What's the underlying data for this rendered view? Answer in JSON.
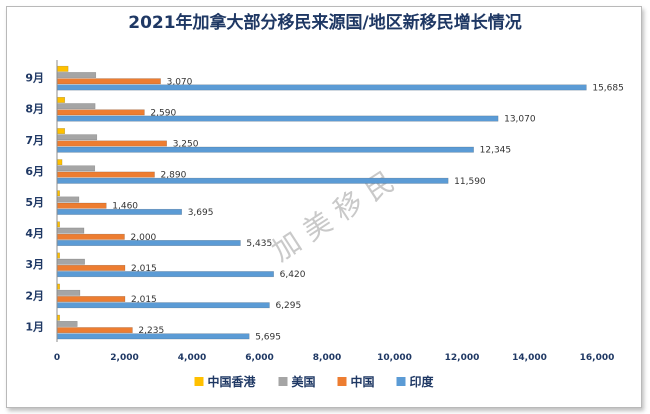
{
  "chart_data": {
    "type": "bar",
    "orientation": "horizontal",
    "title": "2021年加拿大部分移民来源国/地区新移民增长情况",
    "categories": [
      "1月",
      "2月",
      "3月",
      "4月",
      "5月",
      "6月",
      "7月",
      "8月",
      "9月"
    ],
    "series": [
      {
        "name": "中国香港",
        "color": "#ffc000",
        "values": [
          80,
          80,
          80,
          80,
          80,
          150,
          230,
          230,
          330
        ]
      },
      {
        "name": "美国",
        "color": "#a5a5a5",
        "values": [
          600,
          680,
          820,
          800,
          650,
          1120,
          1180,
          1130,
          1150
        ]
      },
      {
        "name": "中国",
        "color": "#ed7d31",
        "values": [
          2235,
          2015,
          2015,
          2000,
          1460,
          2890,
          3250,
          2590,
          3070
        ],
        "labels": [
          "2,235",
          "2,015",
          "2,015",
          "2,000",
          "1,460",
          "2,890",
          "3,250",
          "2,590",
          "3,070"
        ]
      },
      {
        "name": "印度",
        "color": "#5b9bd5",
        "values": [
          5695,
          6295,
          6420,
          5435,
          3695,
          11590,
          12345,
          13070,
          15685
        ],
        "labels": [
          "5,695",
          "6,295",
          "6,420",
          "5,435",
          "3,695",
          "11,590",
          "12,345",
          "13,070",
          "15,685"
        ]
      }
    ],
    "xlim": [
      0,
      16000
    ],
    "xticks": [
      0,
      2000,
      4000,
      6000,
      8000,
      10000,
      12000,
      14000,
      16000
    ],
    "xtick_labels": [
      "0",
      "2,000",
      "4,000",
      "6,000",
      "8,000",
      "10,000",
      "12,000",
      "14,000",
      "16,000"
    ],
    "xlabel": "",
    "ylabel": "",
    "grid": false,
    "legend_position": "bottom",
    "watermark": "加 美 移 民"
  }
}
